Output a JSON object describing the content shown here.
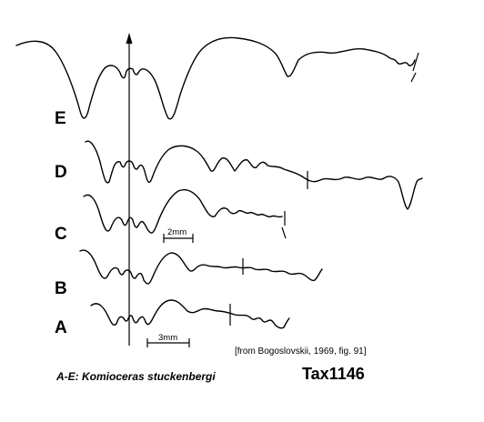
{
  "figure": {
    "labels": {
      "E": "E",
      "D": "D",
      "C": "C",
      "B": "B",
      "A": "A"
    },
    "scale_bar_upper": "2mm",
    "scale_bar_lower": "3mm",
    "source": "[from Bogoslovskii, 1969, fig. 91]",
    "caption": "A-E: Komioceras stuckenbergi",
    "id": "Tax1146"
  }
}
